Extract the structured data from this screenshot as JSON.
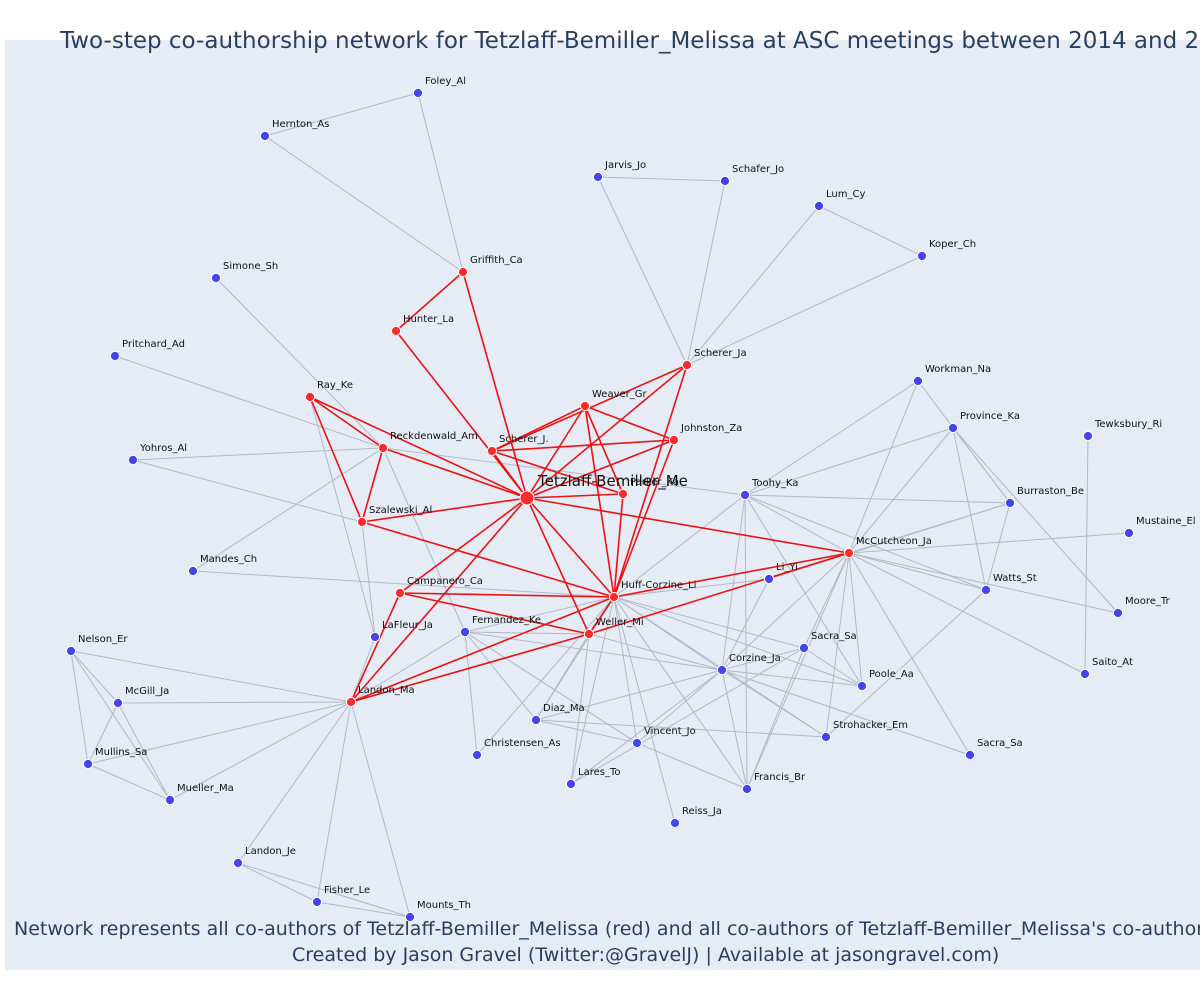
{
  "title": "Two-step co-authorship network for Tetzlaff-Bemiller_Melissa at ASC meetings between 2014 and 2",
  "caption_line1": "Network represents all co-authors of Tetzlaff-Bemiller_Melissa (red) and all co-authors of Tetzlaff-Bemiller_Melissa's co-authors (",
  "caption_line2": "Created by Jason Gravel (Twitter:@GravelJ) | Available at jasongravel.com)",
  "colors": {
    "background": "#e5ecf6",
    "coauthor_node": "#ff2b2b",
    "second_step_node": "#4444ee",
    "coauthor_edge": "#ee1111",
    "second_step_edge": "#b4b8c8",
    "text": "#2a3f5f"
  },
  "network": {
    "focal": "Tetzlaff-Bemiller_Me",
    "nodes": [
      {
        "id": "Tetzlaff-Bemiller_Me",
        "label": "Tetzlaff-Bemiller_Me",
        "group": "focal"
      },
      {
        "id": "Foley_Al",
        "label": "Foley_Al",
        "group": "second"
      },
      {
        "id": "Hernton_As",
        "label": "Hernton_As",
        "group": "second"
      },
      {
        "id": "Jarvis_Jo",
        "label": "Jarvis_Jo",
        "group": "second"
      },
      {
        "id": "Schafer_Jo",
        "label": "Schafer_Jo",
        "group": "second"
      },
      {
        "id": "Lum_Cy",
        "label": "Lum_Cy",
        "group": "second"
      },
      {
        "id": "Koper_Ch",
        "label": "Koper_Ch",
        "group": "second"
      },
      {
        "id": "Griffith_Ca",
        "label": "Griffith_Ca",
        "group": "coauthor"
      },
      {
        "id": "Simone_Sh",
        "label": "Simone_Sh",
        "group": "second"
      },
      {
        "id": "Hunter_La",
        "label": "Hunter_La",
        "group": "coauthor"
      },
      {
        "id": "Pritchard_Ad",
        "label": "Pritchard_Ad",
        "group": "second"
      },
      {
        "id": "Scherer_Ja",
        "label": "Scherer_Ja",
        "group": "coauthor"
      },
      {
        "id": "Workman_Na",
        "label": "Workman_Na",
        "group": "second"
      },
      {
        "id": "Ray_Ke",
        "label": "Ray_Ke",
        "group": "coauthor"
      },
      {
        "id": "Weaver_Gr",
        "label": "Weaver_Gr",
        "group": "coauthor"
      },
      {
        "id": "Province_Ka",
        "label": "Province_Ka",
        "group": "second"
      },
      {
        "id": "Tewksbury_Ri",
        "label": "Tewksbury_Ri",
        "group": "second"
      },
      {
        "id": "Reckdenwald_Am",
        "label": "Reckdenwald_Am",
        "group": "coauthor"
      },
      {
        "id": "Scherer_J.",
        "label": "Scherer_J.",
        "group": "coauthor"
      },
      {
        "id": "Johnston_Za",
        "label": "Johnston_Za",
        "group": "coauthor"
      },
      {
        "id": "Yohros_Al",
        "label": "Yohros_Al",
        "group": "second"
      },
      {
        "id": "Parker_Ka",
        "label": "Parker_Ka",
        "group": "coauthor"
      },
      {
        "id": "Toohy_Ka",
        "label": "Toohy_Ka",
        "group": "second"
      },
      {
        "id": "Burraston_Be",
        "label": "Burraston_Be",
        "group": "second"
      },
      {
        "id": "Szalewski_Al",
        "label": "Szalewski_Al",
        "group": "coauthor"
      },
      {
        "id": "Mustaine_El",
        "label": "Mustaine_El",
        "group": "second"
      },
      {
        "id": "McCutcheon_Ja",
        "label": "McCutcheon_Ja",
        "group": "coauthor"
      },
      {
        "id": "Mandes_Ch",
        "label": "Mandes_Ch",
        "group": "second"
      },
      {
        "id": "Li_Yi",
        "label": "Li_Yi",
        "group": "second"
      },
      {
        "id": "Campanero_Ca",
        "label": "Campanero_Ca",
        "group": "coauthor"
      },
      {
        "id": "Huff-Corzine_Li",
        "label": "Huff-Corzine_Li",
        "group": "coauthor"
      },
      {
        "id": "Watts_St",
        "label": "Watts_St",
        "group": "second"
      },
      {
        "id": "Moore_Tr",
        "label": "Moore_Tr",
        "group": "second"
      },
      {
        "id": "Fernandez_Ke",
        "label": "Fernandez_Ke",
        "group": "second"
      },
      {
        "id": "Weller_Mi",
        "label": "Weller_Mi",
        "group": "coauthor"
      },
      {
        "id": "LaFleur_Ja",
        "label": "LaFleur_Ja",
        "group": "second"
      },
      {
        "id": "Sacra_Sa_1",
        "label": "Sacra_Sa",
        "group": "second"
      },
      {
        "id": "Nelson_Er",
        "label": "Nelson_Er",
        "group": "second"
      },
      {
        "id": "Corzine_Ja",
        "label": "Corzine_Ja",
        "group": "second"
      },
      {
        "id": "Saito_At",
        "label": "Saito_At",
        "group": "second"
      },
      {
        "id": "Poole_Aa",
        "label": "Poole_Aa",
        "group": "second"
      },
      {
        "id": "McGill_Ja",
        "label": "McGill_Ja",
        "group": "second"
      },
      {
        "id": "Landon_Ma",
        "label": "Landon_Ma",
        "group": "coauthor"
      },
      {
        "id": "Diaz_Ma",
        "label": "Diaz_Ma",
        "group": "second"
      },
      {
        "id": "Strohacker_Em",
        "label": "Strohacker_Em",
        "group": "second"
      },
      {
        "id": "Vincent_Jo",
        "label": "Vincent_Jo",
        "group": "second"
      },
      {
        "id": "Christensen_As",
        "label": "Christensen_As",
        "group": "second"
      },
      {
        "id": "Sacra_Sa_2",
        "label": "Sacra_Sa",
        "group": "second"
      },
      {
        "id": "Mullins_Sa",
        "label": "Mullins_Sa",
        "group": "second"
      },
      {
        "id": "Lares_To",
        "label": "Lares_To",
        "group": "second"
      },
      {
        "id": "Francis_Br",
        "label": "Francis_Br",
        "group": "second"
      },
      {
        "id": "Mueller_Ma",
        "label": "Mueller_Ma",
        "group": "second"
      },
      {
        "id": "Reiss_Ja",
        "label": "Reiss_Ja",
        "group": "second"
      },
      {
        "id": "Landon_Je",
        "label": "Landon_Je",
        "group": "second"
      },
      {
        "id": "Fisher_Le",
        "label": "Fisher_Le",
        "group": "second"
      },
      {
        "id": "Mounts_Th",
        "label": "Mounts_Th",
        "group": "second"
      }
    ],
    "edges": [
      [
        "Tetzlaff-Bemiller_Me",
        "Griffith_Ca"
      ],
      [
        "Tetzlaff-Bemiller_Me",
        "Hunter_La"
      ],
      [
        "Tetzlaff-Bemiller_Me",
        "Scherer_Ja"
      ],
      [
        "Tetzlaff-Bemiller_Me",
        "Ray_Ke"
      ],
      [
        "Tetzlaff-Bemiller_Me",
        "Weaver_Gr"
      ],
      [
        "Tetzlaff-Bemiller_Me",
        "Reckdenwald_Am"
      ],
      [
        "Tetzlaff-Bemiller_Me",
        "Scherer_J."
      ],
      [
        "Tetzlaff-Bemiller_Me",
        "Johnston_Za"
      ],
      [
        "Tetzlaff-Bemiller_Me",
        "Parker_Ka"
      ],
      [
        "Tetzlaff-Bemiller_Me",
        "Szalewski_Al"
      ],
      [
        "Tetzlaff-Bemiller_Me",
        "McCutcheon_Ja"
      ],
      [
        "Tetzlaff-Bemiller_Me",
        "Campanero_Ca"
      ],
      [
        "Tetzlaff-Bemiller_Me",
        "Huff-Corzine_Li"
      ],
      [
        "Tetzlaff-Bemiller_Me",
        "Weller_Mi"
      ],
      [
        "Tetzlaff-Bemiller_Me",
        "Landon_Ma"
      ],
      [
        "Griffith_Ca",
        "Hunter_La"
      ],
      [
        "Ray_Ke",
        "Reckdenwald_Am"
      ],
      [
        "Ray_Ke",
        "Szalewski_Al"
      ],
      [
        "Reckdenwald_Am",
        "Szalewski_Al"
      ],
      [
        "Weaver_Gr",
        "Scherer_J."
      ],
      [
        "Weaver_Gr",
        "Johnston_Za"
      ],
      [
        "Weaver_Gr",
        "Parker_Ka"
      ],
      [
        "Weaver_Gr",
        "Huff-Corzine_Li"
      ],
      [
        "Scherer_J.",
        "Johnston_Za"
      ],
      [
        "Scherer_J.",
        "Parker_Ka"
      ],
      [
        "Scherer_Ja",
        "Scherer_J."
      ],
      [
        "Scherer_Ja",
        "Huff-Corzine_Li"
      ],
      [
        "Johnston_Za",
        "Huff-Corzine_Li"
      ],
      [
        "Parker_Ka",
        "Huff-Corzine_Li"
      ],
      [
        "Szalewski_Al",
        "Huff-Corzine_Li"
      ],
      [
        "Campanero_Ca",
        "Huff-Corzine_Li"
      ],
      [
        "Campanero_Ca",
        "Weller_Mi"
      ],
      [
        "Campanero_Ca",
        "Landon_Ma"
      ],
      [
        "Huff-Corzine_Li",
        "McCutcheon_Ja"
      ],
      [
        "Huff-Corzine_Li",
        "Weller_Mi"
      ],
      [
        "Weller_Mi",
        "McCutcheon_Ja"
      ],
      [
        "Weller_Mi",
        "Landon_Ma"
      ],
      [
        "Huff-Corzine_Li",
        "Landon_Ma"
      ],
      [
        "Foley_Al",
        "Hernton_As"
      ],
      [
        "Foley_Al",
        "Griffith_Ca"
      ],
      [
        "Hernton_As",
        "Griffith_Ca"
      ],
      [
        "Jarvis_Jo",
        "Schafer_Jo"
      ],
      [
        "Jarvis_Jo",
        "Scherer_Ja"
      ],
      [
        "Schafer_Jo",
        "Scherer_Ja"
      ],
      [
        "Lum_Cy",
        "Scherer_Ja"
      ],
      [
        "Koper_Ch",
        "Scherer_Ja"
      ],
      [
        "Lum_Cy",
        "Koper_Ch"
      ],
      [
        "Simone_Sh",
        "Reckdenwald_Am"
      ],
      [
        "Pritchard_Ad",
        "Reckdenwald_Am"
      ],
      [
        "Yohros_Al",
        "Reckdenwald_Am"
      ],
      [
        "Yohros_Al",
        "Szalewski_Al"
      ],
      [
        "Mandes_Ch",
        "Reckdenwald_Am"
      ],
      [
        "Mandes_Ch",
        "Huff-Corzine_Li"
      ],
      [
        "Reckdenwald_Am",
        "Toohy_Ka"
      ],
      [
        "Reckdenwald_Am",
        "Fernandez_Ke"
      ],
      [
        "Ray_Ke",
        "LaFleur_Ja"
      ],
      [
        "Szalewski_Al",
        "LaFleur_Ja"
      ],
      [
        "Workman_Na",
        "Toohy_Ka"
      ],
      [
        "Workman_Na",
        "Burraston_Be"
      ],
      [
        "Workman_Na",
        "McCutcheon_Ja"
      ],
      [
        "Province_Ka",
        "Toohy_Ka"
      ],
      [
        "Province_Ka",
        "McCutcheon_Ja"
      ],
      [
        "Province_Ka",
        "Burraston_Be"
      ],
      [
        "Province_Ka",
        "Watts_St"
      ],
      [
        "Province_Ka",
        "Moore_Tr"
      ],
      [
        "Tewksbury_Ri",
        "Saito_At"
      ],
      [
        "Burraston_Be",
        "Toohy_Ka"
      ],
      [
        "Burraston_Be",
        "McCutcheon_Ja"
      ],
      [
        "Burraston_Be",
        "Watts_St"
      ],
      [
        "Burraston_Be",
        "Li_Yi"
      ],
      [
        "Mustaine_El",
        "McCutcheon_Ja"
      ],
      [
        "Toohy_Ka",
        "McCutcheon_Ja"
      ],
      [
        "Toohy_Ka",
        "Huff-Corzine_Li"
      ],
      [
        "Toohy_Ka",
        "Corzine_Ja"
      ],
      [
        "Toohy_Ka",
        "Poole_Aa"
      ],
      [
        "Toohy_Ka",
        "Watts_St"
      ],
      [
        "Toohy_Ka",
        "Francis_Br"
      ],
      [
        "McCutcheon_Ja",
        "Watts_St"
      ],
      [
        "McCutcheon_Ja",
        "Moore_Tr"
      ],
      [
        "McCutcheon_Ja",
        "Saito_At"
      ],
      [
        "McCutcheon_Ja",
        "Corzine_Ja"
      ],
      [
        "McCutcheon_Ja",
        "Sacra_Sa_1"
      ],
      [
        "McCutcheon_Ja",
        "Poole_Aa"
      ],
      [
        "McCutcheon_Ja",
        "Strohacker_Em"
      ],
      [
        "McCutcheon_Ja",
        "Sacra_Sa_2"
      ],
      [
        "McCutcheon_Ja",
        "Francis_Br"
      ],
      [
        "Watts_St",
        "Strohacker_Em"
      ],
      [
        "Li_Yi",
        "Huff-Corzine_Li"
      ],
      [
        "Li_Yi",
        "Corzine_Ja"
      ],
      [
        "Huff-Corzine_Li",
        "Fernandez_Ke"
      ],
      [
        "Huff-Corzine_Li",
        "Corzine_Ja"
      ],
      [
        "Huff-Corzine_Li",
        "Sacra_Sa_1"
      ],
      [
        "Huff-Corzine_Li",
        "Poole_Aa"
      ],
      [
        "Huff-Corzine_Li",
        "Diaz_Ma"
      ],
      [
        "Huff-Corzine_Li",
        "Vincent_Jo"
      ],
      [
        "Huff-Corzine_Li",
        "Lares_To"
      ],
      [
        "Huff-Corzine_Li",
        "Francis_Br"
      ],
      [
        "Huff-Corzine_Li",
        "Reiss_Ja"
      ],
      [
        "Huff-Corzine_Li",
        "Strohacker_Em"
      ],
      [
        "Huff-Corzine_Li",
        "Christensen_As"
      ],
      [
        "Weller_Mi",
        "Fernandez_Ke"
      ],
      [
        "Weller_Mi",
        "Corzine_Ja"
      ],
      [
        "Weller_Mi",
        "Diaz_Ma"
      ],
      [
        "Weller_Mi",
        "Lares_To"
      ],
      [
        "Fernandez_Ke",
        "Corzine_Ja"
      ],
      [
        "Fernandez_Ke",
        "Diaz_Ma"
      ],
      [
        "Fernandez_Ke",
        "Vincent_Jo"
      ],
      [
        "Fernandez_Ke",
        "Christensen_As"
      ],
      [
        "Fernandez_Ke",
        "Landon_Ma"
      ],
      [
        "Corzine_Ja",
        "Sacra_Sa_1"
      ],
      [
        "Corzine_Ja",
        "Poole_Aa"
      ],
      [
        "Corzine_Ja",
        "Strohacker_Em"
      ],
      [
        "Corzine_Ja",
        "Sacra_Sa_2"
      ],
      [
        "Corzine_Ja",
        "Diaz_Ma"
      ],
      [
        "Corzine_Ja",
        "Vincent_Jo"
      ],
      [
        "Corzine_Ja",
        "Lares_To"
      ],
      [
        "Corzine_Ja",
        "Francis_Br"
      ],
      [
        "Sacra_Sa_1",
        "Poole_Aa"
      ],
      [
        "Sacra_Sa_1",
        "Francis_Br"
      ],
      [
        "Sacra_Sa_1",
        "Lares_To"
      ],
      [
        "Strohacker_Em",
        "Diaz_Ma"
      ],
      [
        "Vincent_Jo",
        "Francis_Br"
      ],
      [
        "Diaz_Ma",
        "Vincent_Jo"
      ],
      [
        "Landon_Ma",
        "Nelson_Er"
      ],
      [
        "Landon_Ma",
        "McGill_Ja"
      ],
      [
        "Landon_Ma",
        "Mullins_Sa"
      ],
      [
        "Landon_Ma",
        "Mueller_Ma"
      ],
      [
        "Landon_Ma",
        "Landon_Je"
      ],
      [
        "Landon_Ma",
        "Fisher_Le"
      ],
      [
        "Landon_Ma",
        "Mounts_Th"
      ],
      [
        "Landon_Ma",
        "LaFleur_Ja"
      ],
      [
        "Nelson_Er",
        "McGill_Ja"
      ],
      [
        "Nelson_Er",
        "Mullins_Sa"
      ],
      [
        "Nelson_Er",
        "Mueller_Ma"
      ],
      [
        "McGill_Ja",
        "Mullins_Sa"
      ],
      [
        "McGill_Ja",
        "Mueller_Ma"
      ],
      [
        "Mullins_Sa",
        "Mueller_Ma"
      ],
      [
        "Landon_Je",
        "Fisher_Le"
      ],
      [
        "Landon_Je",
        "Mounts_Th"
      ],
      [
        "Fisher_Le",
        "Mounts_Th"
      ]
    ]
  }
}
